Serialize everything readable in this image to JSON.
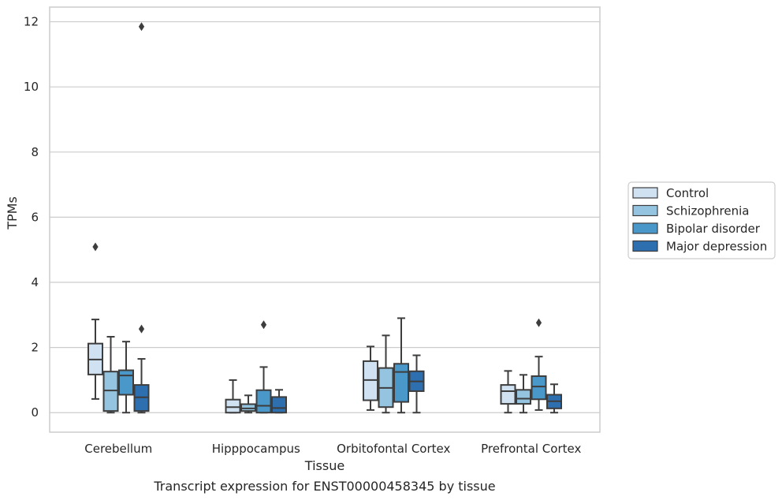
{
  "chart_data": {
    "type": "box",
    "title": "Transcript expression for ENST00000458345 by tissue",
    "xlabel": "Tissue",
    "ylabel": "TPMs",
    "ylim": [
      -0.6,
      12.45
    ],
    "yticks": [
      0,
      2,
      4,
      6,
      8,
      10,
      12
    ],
    "grid": "horizontal",
    "legend_position": "right",
    "categories": [
      "Cerebellum",
      "Hipppocampus",
      "Orbitofontal Cortex",
      "Prefrontal Cortex"
    ],
    "series": [
      {
        "name": "Control",
        "color": "#d0e1f2",
        "boxes": [
          {
            "whisker_low": 0.42,
            "q1": 1.17,
            "median": 1.63,
            "q3": 2.12,
            "whisker_high": 2.86,
            "outliers": [
              5.09
            ]
          },
          {
            "whisker_low": 0.0,
            "q1": 0.0,
            "median": 0.17,
            "q3": 0.4,
            "whisker_high": 1.0,
            "outliers": []
          },
          {
            "whisker_low": 0.08,
            "q1": 0.38,
            "median": 1.0,
            "q3": 1.58,
            "whisker_high": 2.03,
            "outliers": []
          },
          {
            "whisker_low": 0.0,
            "q1": 0.27,
            "median": 0.66,
            "q3": 0.85,
            "whisker_high": 1.28,
            "outliers": []
          }
        ]
      },
      {
        "name": "Schizophrenia",
        "color": "#94c4df",
        "boxes": [
          {
            "whisker_low": 0.0,
            "q1": 0.05,
            "median": 0.68,
            "q3": 1.26,
            "whisker_high": 2.33,
            "outliers": []
          },
          {
            "whisker_low": 0.0,
            "q1": 0.05,
            "median": 0.13,
            "q3": 0.26,
            "whisker_high": 0.53,
            "outliers": []
          },
          {
            "whisker_low": 0.0,
            "q1": 0.17,
            "median": 0.76,
            "q3": 1.37,
            "whisker_high": 2.37,
            "outliers": []
          },
          {
            "whisker_low": 0.0,
            "q1": 0.27,
            "median": 0.43,
            "q3": 0.7,
            "whisker_high": 1.16,
            "outliers": []
          }
        ]
      },
      {
        "name": "Bipolar disorder",
        "color": "#4a98c9",
        "boxes": [
          {
            "whisker_low": 0.0,
            "q1": 0.55,
            "median": 1.14,
            "q3": 1.3,
            "whisker_high": 2.18,
            "outliers": []
          },
          {
            "whisker_low": 0.0,
            "q1": 0.0,
            "median": 0.21,
            "q3": 0.69,
            "whisker_high": 1.4,
            "outliers": [
              2.7
            ]
          },
          {
            "whisker_low": 0.0,
            "q1": 0.33,
            "median": 1.25,
            "q3": 1.5,
            "whisker_high": 2.9,
            "outliers": []
          },
          {
            "whisker_low": 0.08,
            "q1": 0.41,
            "median": 0.8,
            "q3": 1.12,
            "whisker_high": 1.72,
            "outliers": [
              2.76
            ]
          }
        ]
      },
      {
        "name": "Major depression",
        "color": "#2e6fb0",
        "boxes": [
          {
            "whisker_low": 0.0,
            "q1": 0.05,
            "median": 0.47,
            "q3": 0.85,
            "whisker_high": 1.65,
            "outliers": [
              2.57,
              11.85
            ]
          },
          {
            "whisker_low": 0.0,
            "q1": 0.0,
            "median": 0.14,
            "q3": 0.48,
            "whisker_high": 0.7,
            "outliers": []
          },
          {
            "whisker_low": 0.0,
            "q1": 0.66,
            "median": 0.96,
            "q3": 1.27,
            "whisker_high": 1.76,
            "outliers": []
          },
          {
            "whisker_low": 0.0,
            "q1": 0.13,
            "median": 0.35,
            "q3": 0.55,
            "whisker_high": 0.87,
            "outliers": []
          }
        ]
      }
    ]
  }
}
